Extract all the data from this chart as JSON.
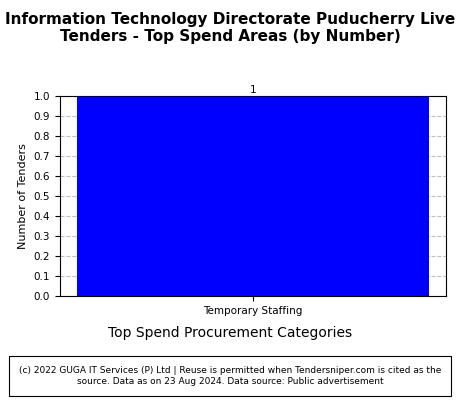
{
  "title": "Information Technology Directorate Puducherry Live\nTenders - Top Spend Areas (by Number)",
  "categories": [
    "Temporary Staffing"
  ],
  "values": [
    1
  ],
  "bar_color": "#0000FF",
  "ylabel": "Number of Tenders",
  "xlabel": "Top Spend Procurement Categories",
  "ylim": [
    0,
    1.0
  ],
  "yticks": [
    0.0,
    0.1,
    0.2,
    0.3,
    0.4,
    0.5,
    0.6,
    0.7,
    0.8,
    0.9,
    1.0
  ],
  "footer_text": "(c) 2022 GUGA IT Services (P) Ltd | Reuse is permitted when Tendersniper.com is cited as the\nsource. Data as on 23 Aug 2024. Data source: Public advertisement",
  "title_fontsize": 11,
  "axis_fontsize": 8,
  "tick_fontsize": 7.5,
  "bar_label_fontsize": 7.5,
  "footer_fontsize": 6.5,
  "xlabel_fontsize": 10
}
